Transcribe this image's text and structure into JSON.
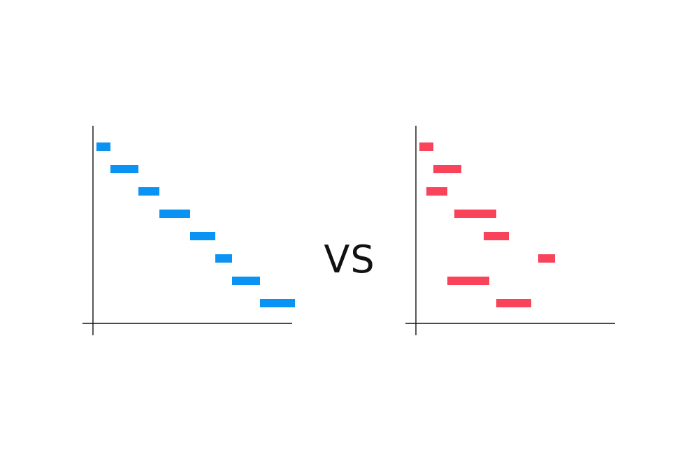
{
  "vs_label": "VS",
  "chart_data": [
    {
      "type": "gantt",
      "title": "",
      "xlabel": "",
      "ylabel": "",
      "grid": false,
      "color": "#0a93f2",
      "xlim": [
        0,
        14.5
      ],
      "tasks": [
        {
          "start": 0.25,
          "end": 1.25
        },
        {
          "start": 1.25,
          "end": 3.25
        },
        {
          "start": 3.25,
          "end": 4.75
        },
        {
          "start": 4.75,
          "end": 6.95
        },
        {
          "start": 6.95,
          "end": 8.75
        },
        {
          "start": 8.75,
          "end": 9.95
        },
        {
          "start": 9.95,
          "end": 11.95
        },
        {
          "start": 11.95,
          "end": 14.45
        }
      ]
    },
    {
      "type": "gantt",
      "title": "",
      "xlabel": "",
      "ylabel": "",
      "grid": false,
      "color": "#f8435a",
      "xlim": [
        0,
        14.5
      ],
      "tasks": [
        {
          "start": 0.25,
          "end": 1.25
        },
        {
          "start": 1.25,
          "end": 3.25
        },
        {
          "start": 0.75,
          "end": 2.25
        },
        {
          "start": 2.75,
          "end": 5.75
        },
        {
          "start": 4.85,
          "end": 6.65
        },
        {
          "start": 8.75,
          "end": 9.95
        },
        {
          "start": 2.25,
          "end": 5.25
        },
        {
          "start": 5.75,
          "end": 8.25
        }
      ]
    }
  ]
}
